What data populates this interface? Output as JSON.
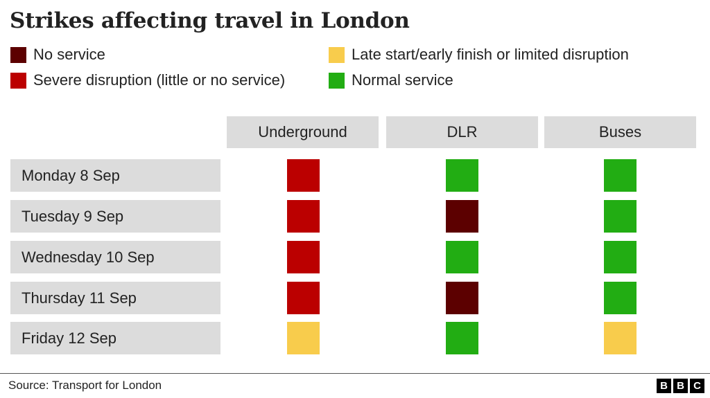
{
  "chart_data": {
    "type": "table",
    "title": "Strikes affecting travel in London",
    "legend": [
      {
        "key": "no_service",
        "label": "No service",
        "color": "#5c0000"
      },
      {
        "key": "severe",
        "label": "Severe disruption (little or no service)",
        "color": "#bb0000"
      },
      {
        "key": "limited",
        "label": "Late start/early finish or limited disruption",
        "color": "#f8cc4c"
      },
      {
        "key": "normal",
        "label": "Normal service",
        "color": "#22ad13"
      }
    ],
    "columns": [
      "Underground",
      "DLR",
      "Buses"
    ],
    "rows": [
      {
        "label": "Monday 8 Sep",
        "values": [
          "severe",
          "normal",
          "normal"
        ]
      },
      {
        "label": "Tuesday 9 Sep",
        "values": [
          "severe",
          "no_service",
          "normal"
        ]
      },
      {
        "label": "Wednesday 10 Sep",
        "values": [
          "severe",
          "normal",
          "normal"
        ]
      },
      {
        "label": "Thursday 11 Sep",
        "values": [
          "severe",
          "no_service",
          "normal"
        ]
      },
      {
        "label": "Friday 12 Sep",
        "values": [
          "limited",
          "normal",
          "limited"
        ]
      }
    ],
    "source": "Source: Transport for London"
  },
  "branding": {
    "logo_letters": [
      "B",
      "B",
      "C"
    ]
  }
}
